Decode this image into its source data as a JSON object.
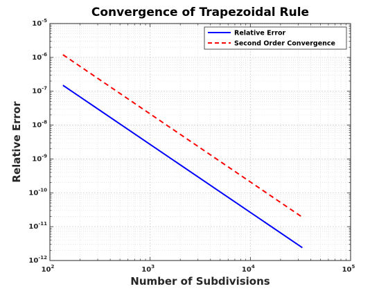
{
  "chart_data": {
    "type": "line",
    "title": "Convergence of Trapezoidal Rule",
    "xlabel": "Number of Subdivisions",
    "ylabel": "Relative Error",
    "x_scale": "log",
    "y_scale": "log",
    "xlim": [
      100,
      100000
    ],
    "ylim": [
      1e-12,
      1e-05
    ],
    "x_ticks": [
      {
        "base": "10",
        "exp": "2",
        "value": 100
      },
      {
        "base": "10",
        "exp": "3",
        "value": 1000
      },
      {
        "base": "10",
        "exp": "4",
        "value": 10000
      },
      {
        "base": "10",
        "exp": "5",
        "value": 100000
      }
    ],
    "y_ticks": [
      {
        "base": "10",
        "exp": "-12",
        "value": 1e-12
      },
      {
        "base": "10",
        "exp": "-11",
        "value": 1e-11
      },
      {
        "base": "10",
        "exp": "-10",
        "value": 1e-10
      },
      {
        "base": "10",
        "exp": "-9",
        "value": 1e-09
      },
      {
        "base": "10",
        "exp": "-8",
        "value": 1e-08
      },
      {
        "base": "10",
        "exp": "-7",
        "value": 1e-07
      },
      {
        "base": "10",
        "exp": "-6",
        "value": 1e-06
      },
      {
        "base": "10",
        "exp": "-5",
        "value": 1e-05
      }
    ],
    "grid": true,
    "minor_grid": true,
    "legend_position": "top-right",
    "series": [
      {
        "name": "Relative Error",
        "color": "#0000ff",
        "style": "solid",
        "x": [
          135,
          33000
        ],
        "y": [
          1.5e-07,
          2.4e-12
        ]
      },
      {
        "name": "Second Order Convergence",
        "color": "#ff0000",
        "style": "dashed",
        "x": [
          135,
          33000
        ],
        "y": [
          1.2e-06,
          1.9e-11
        ]
      }
    ]
  }
}
